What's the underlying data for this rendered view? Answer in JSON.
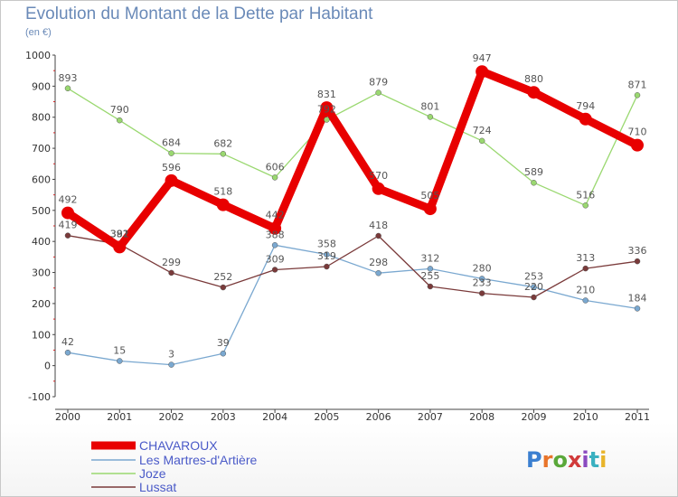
{
  "header": {
    "title": "Evolution du Montant de la Dette par Habitant",
    "subtitle": "(en €)"
  },
  "logo": {
    "text": "Proxiti",
    "letter_colors": [
      "#3a7fd0",
      "#e8742a",
      "#5aa83a",
      "#d13a3a",
      "#8a4ac0",
      "#3ab0c0",
      "#e8b42a"
    ]
  },
  "chart_data": {
    "type": "line",
    "x": [
      "2000",
      "2001",
      "2002",
      "2003",
      "2004",
      "2005",
      "2006",
      "2007",
      "2008",
      "2009",
      "2010",
      "2011"
    ],
    "ylim": [
      -100,
      1000
    ],
    "yticks": [
      -100,
      0,
      100,
      200,
      300,
      400,
      500,
      600,
      700,
      800,
      900,
      1000
    ],
    "grid": false,
    "legend_position": "bottom-left",
    "series": [
      {
        "name": "CHAVAROUX",
        "color": "#e80000",
        "values": [
          492,
          382,
          596,
          518,
          442,
          831,
          570,
          505,
          947,
          880,
          794,
          710
        ]
      },
      {
        "name": "Les Martres-d'Artière",
        "color": "#7aa8d0",
        "values": [
          42,
          15,
          3,
          39,
          388,
          358,
          298,
          312,
          280,
          253,
          210,
          184
        ]
      },
      {
        "name": "Joze",
        "color": "#9ad870",
        "values": [
          893,
          790,
          684,
          682,
          606,
          792,
          879,
          801,
          724,
          589,
          516,
          871
        ]
      },
      {
        "name": "Lussat",
        "color": "#7a3a3a",
        "values": [
          419,
          391,
          299,
          252,
          309,
          319,
          418,
          255,
          233,
          220,
          313,
          336
        ]
      }
    ]
  }
}
